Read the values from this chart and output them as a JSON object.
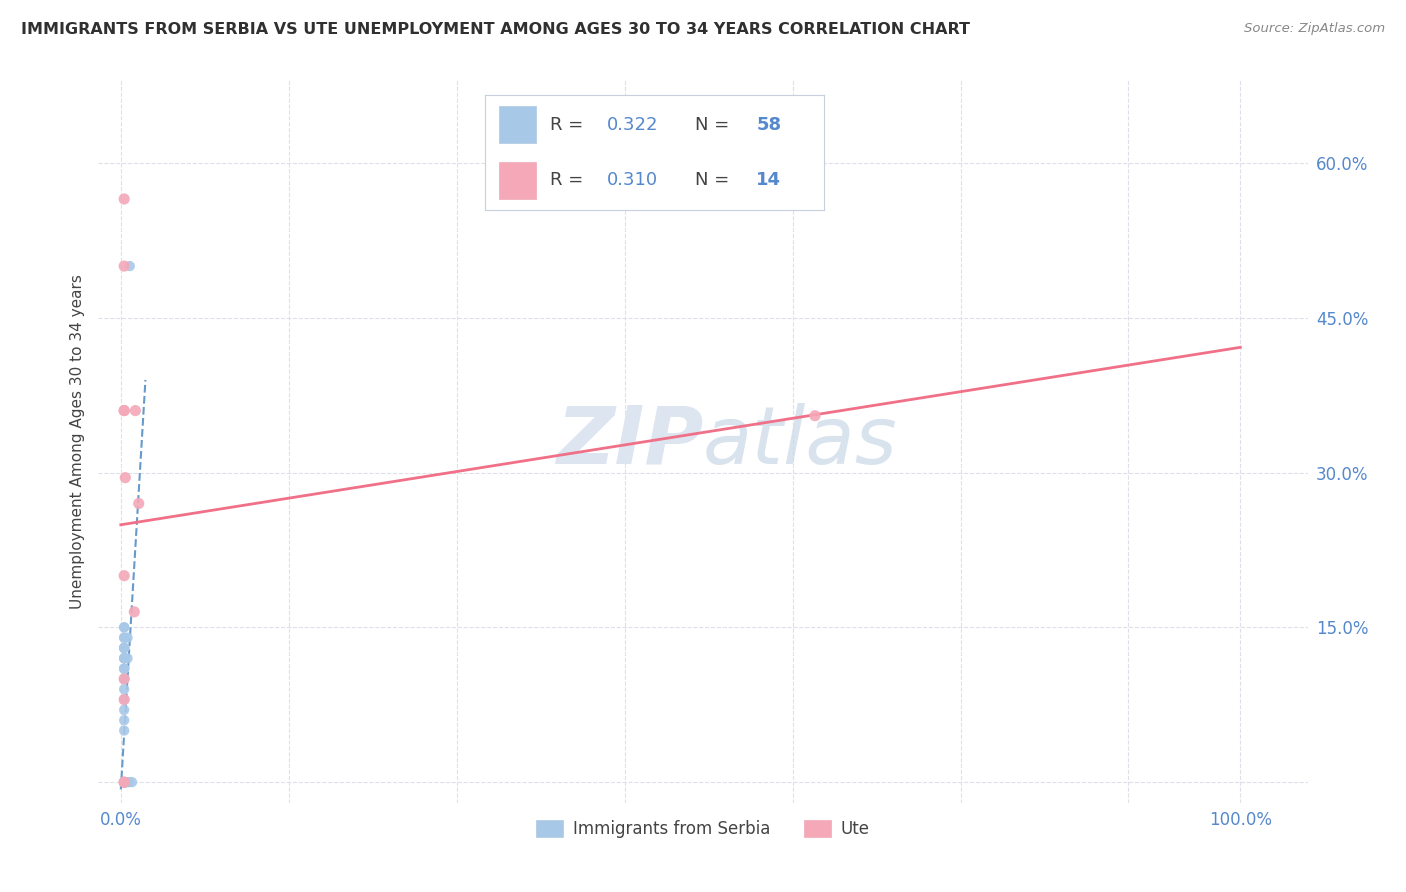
{
  "title": "IMMIGRANTS FROM SERBIA VS UTE UNEMPLOYMENT AMONG AGES 30 TO 34 YEARS CORRELATION CHART",
  "source": "Source: ZipAtlas.com",
  "ylabel": "Unemployment Among Ages 30 to 34 years",
  "legend_label_1": "Immigrants from Serbia",
  "legend_label_2": "Ute",
  "r1": 0.322,
  "n1": 58,
  "r2": 0.31,
  "n2": 14,
  "color1": "#a8c8e8",
  "color2": "#f4a8b8",
  "trendline1_color": "#6699cc",
  "trendline2_color": "#f07088",
  "serbia_x": [
    0.003,
    0.003,
    0.003,
    0.003,
    0.003,
    0.003,
    0.003,
    0.003,
    0.003,
    0.003,
    0.003,
    0.003,
    0.003,
    0.003,
    0.003,
    0.003,
    0.003,
    0.003,
    0.003,
    0.003,
    0.003,
    0.003,
    0.003,
    0.003,
    0.003,
    0.003,
    0.003,
    0.003,
    0.003,
    0.003,
    0.003,
    0.003,
    0.003,
    0.003,
    0.003,
    0.003,
    0.003,
    0.003,
    0.003,
    0.003,
    0.003,
    0.003,
    0.003,
    0.003,
    0.003,
    0.003,
    0.003,
    0.003,
    0.003,
    0.003,
    0.004,
    0.004,
    0.005,
    0.006,
    0.006,
    0.007,
    0.008,
    0.01
  ],
  "serbia_y": [
    0.0,
    0.0,
    0.0,
    0.0,
    0.0,
    0.0,
    0.0,
    0.0,
    0.0,
    0.0,
    0.0,
    0.0,
    0.0,
    0.0,
    0.0,
    0.0,
    0.0,
    0.0,
    0.0,
    0.0,
    0.0,
    0.0,
    0.0,
    0.0,
    0.05,
    0.06,
    0.07,
    0.08,
    0.09,
    0.1,
    0.1,
    0.1,
    0.11,
    0.11,
    0.11,
    0.12,
    0.12,
    0.12,
    0.13,
    0.13,
    0.13,
    0.13,
    0.14,
    0.14,
    0.15,
    0.15,
    0.0,
    0.0,
    0.0,
    0.0,
    0.0,
    0.0,
    0.0,
    0.12,
    0.14,
    0.0,
    0.5,
    0.0
  ],
  "ute_x": [
    0.003,
    0.003,
    0.003,
    0.004,
    0.003,
    0.012,
    0.003,
    0.003,
    0.016,
    0.013,
    0.003,
    0.003,
    0.62,
    0.003
  ],
  "ute_y": [
    0.0,
    0.1,
    0.2,
    0.295,
    0.36,
    0.165,
    0.36,
    0.0,
    0.27,
    0.36,
    0.5,
    0.565,
    0.355,
    0.08
  ],
  "xlim": [
    -0.02,
    1.06
  ],
  "ylim": [
    -0.02,
    0.68
  ],
  "ytick_positions": [
    0.0,
    0.15,
    0.3,
    0.45,
    0.6
  ],
  "ytick_labels": [
    "",
    "15.0%",
    "30.0%",
    "45.0%",
    "60.0%"
  ],
  "xtick_positions": [
    0.0,
    0.15,
    0.3,
    0.45,
    0.6,
    0.75,
    0.9,
    1.0
  ],
  "xtick_labels": [
    "0.0%",
    "",
    "",
    "",
    "",
    "",
    "",
    "100.0%"
  ],
  "grid_color": "#dde0e8",
  "bg_color": "#ffffff",
  "title_color": "#303030",
  "axis_label_color": "#5588cc",
  "watermark_color": "#dde5f0"
}
